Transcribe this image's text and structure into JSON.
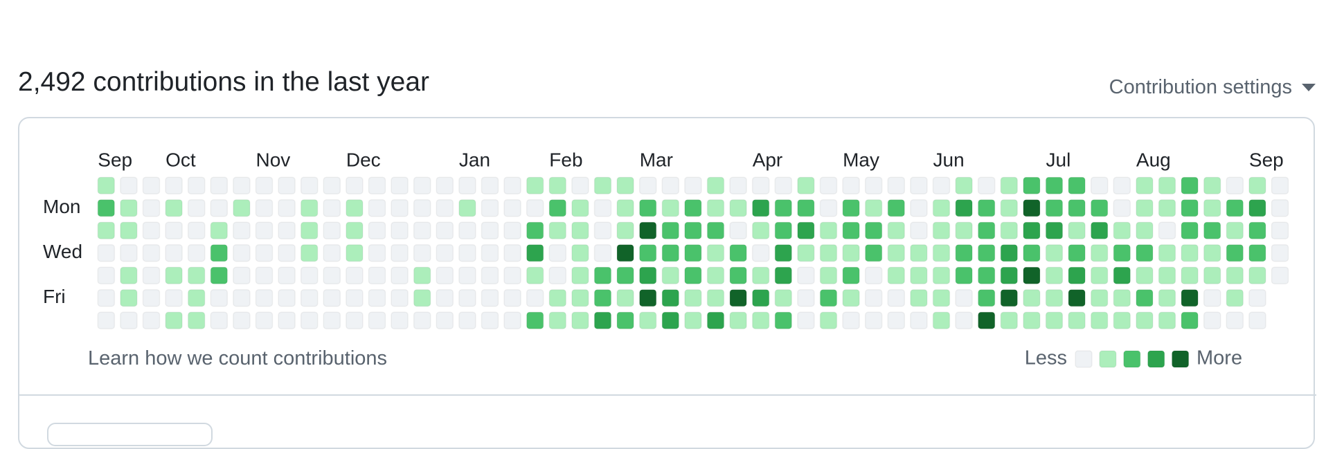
{
  "header": {
    "title": "2,492 contributions in the last year",
    "settings": "Contribution settings"
  },
  "graph": {
    "months": [
      {
        "label": "Sep",
        "week": 0
      },
      {
        "label": "Oct",
        "week": 3
      },
      {
        "label": "Nov",
        "week": 7
      },
      {
        "label": "Dec",
        "week": 11
      },
      {
        "label": "Jan",
        "week": 16
      },
      {
        "label": "Feb",
        "week": 20
      },
      {
        "label": "Mar",
        "week": 24
      },
      {
        "label": "Apr",
        "week": 29
      },
      {
        "label": "May",
        "week": 33
      },
      {
        "label": "Jun",
        "week": 37
      },
      {
        "label": "Jul",
        "week": 42
      },
      {
        "label": "Aug",
        "week": 46
      },
      {
        "label": "Sep",
        "week": 51
      }
    ],
    "day_labels": [
      "Mon",
      "Wed",
      "Fri"
    ],
    "level_colors": [
      "#eff2f5",
      "#aceebb",
      "#4ac26b",
      "#2da44e",
      "#116329"
    ],
    "rows": [
      [
        1,
        0,
        0,
        0,
        0,
        0,
        0,
        0,
        0,
        0,
        0,
        0,
        0,
        0,
        0,
        0,
        0,
        0,
        0,
        1,
        1,
        0,
        1,
        1,
        0,
        0,
        0,
        1,
        0,
        0,
        0,
        1,
        0,
        0,
        0,
        0,
        0,
        0,
        1,
        0,
        1,
        2,
        2,
        2,
        0,
        0,
        1,
        1,
        2,
        1,
        0,
        1,
        0
      ],
      [
        2,
        1,
        0,
        1,
        0,
        0,
        1,
        0,
        0,
        1,
        0,
        1,
        0,
        0,
        0,
        0,
        1,
        0,
        0,
        0,
        2,
        1,
        0,
        1,
        2,
        1,
        2,
        1,
        1,
        3,
        2,
        2,
        0,
        2,
        1,
        2,
        0,
        1,
        3,
        2,
        1,
        4,
        2,
        2,
        2,
        0,
        1,
        1,
        2,
        1,
        2,
        3,
        0
      ],
      [
        1,
        1,
        0,
        0,
        0,
        1,
        0,
        0,
        0,
        1,
        0,
        1,
        0,
        0,
        0,
        0,
        0,
        0,
        0,
        2,
        1,
        1,
        0,
        1,
        4,
        2,
        2,
        2,
        0,
        1,
        2,
        3,
        1,
        2,
        2,
        1,
        0,
        1,
        1,
        2,
        1,
        3,
        3,
        1,
        3,
        1,
        1,
        0,
        2,
        2,
        1,
        2,
        0
      ],
      [
        0,
        0,
        0,
        0,
        0,
        2,
        0,
        0,
        0,
        1,
        0,
        1,
        0,
        0,
        0,
        0,
        0,
        0,
        0,
        3,
        0,
        1,
        0,
        4,
        2,
        2,
        2,
        1,
        2,
        0,
        3,
        1,
        1,
        1,
        2,
        1,
        1,
        1,
        2,
        2,
        3,
        2,
        1,
        2,
        1,
        2,
        2,
        1,
        1,
        1,
        2,
        2,
        0
      ],
      [
        0,
        1,
        0,
        1,
        1,
        2,
        0,
        0,
        0,
        0,
        0,
        0,
        0,
        0,
        1,
        0,
        0,
        0,
        0,
        1,
        0,
        1,
        2,
        2,
        3,
        1,
        2,
        1,
        2,
        1,
        3,
        0,
        1,
        2,
        0,
        1,
        1,
        1,
        2,
        2,
        3,
        4,
        1,
        3,
        1,
        3,
        1,
        1,
        1,
        1,
        1,
        1,
        0
      ],
      [
        0,
        1,
        0,
        0,
        1,
        0,
        0,
        0,
        0,
        0,
        0,
        0,
        0,
        0,
        1,
        0,
        0,
        0,
        0,
        0,
        1,
        1,
        2,
        1,
        4,
        3,
        1,
        1,
        4,
        3,
        1,
        0,
        2,
        1,
        0,
        0,
        1,
        1,
        0,
        2,
        4,
        1,
        1,
        4,
        1,
        1,
        2,
        1,
        4,
        0,
        1,
        0
      ],
      [
        0,
        0,
        0,
        1,
        1,
        0,
        0,
        0,
        0,
        0,
        0,
        0,
        0,
        0,
        0,
        0,
        0,
        0,
        0,
        2,
        1,
        1,
        3,
        2,
        1,
        3,
        1,
        3,
        1,
        1,
        2,
        0,
        1,
        0,
        0,
        0,
        0,
        1,
        0,
        4,
        1,
        1,
        1,
        1,
        1,
        1,
        1,
        1,
        2,
        0,
        0,
        0
      ]
    ],
    "footer_link": "Learn how we count contributions",
    "legend": {
      "less": "Less",
      "more": "More"
    }
  }
}
